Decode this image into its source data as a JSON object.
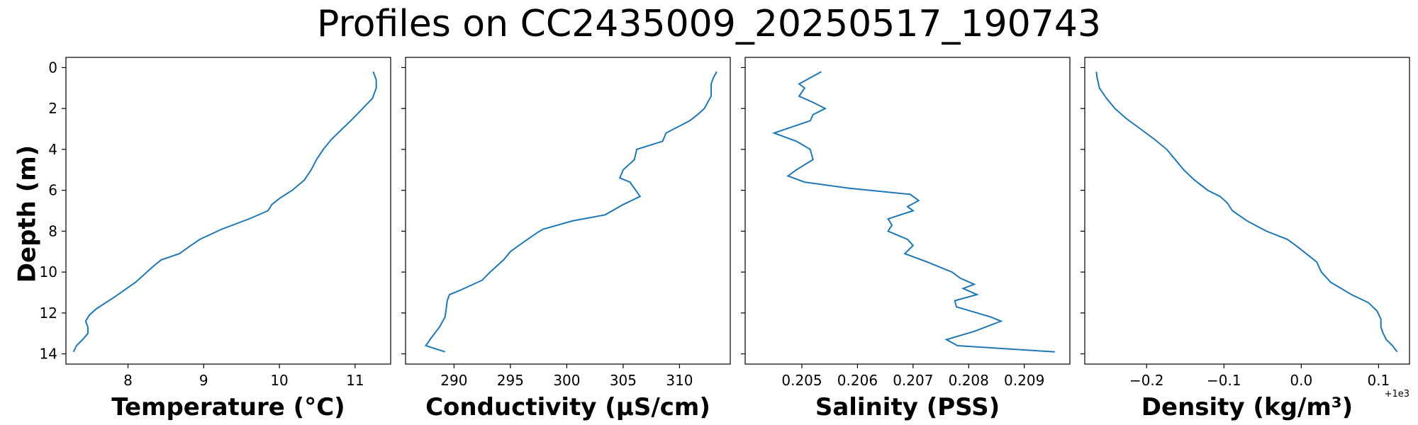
{
  "figure": {
    "title": "Profiles on CC2435009_20250517_190743",
    "ylabel": "Depth (m)",
    "line_color": "#1f77b4"
  },
  "chart_data": [
    {
      "type": "line",
      "xlabel": "Temperature (°C)",
      "ylabel": "Depth (m)",
      "xlim": [
        7.18,
        11.47
      ],
      "ylim": [
        14.5,
        -0.5
      ],
      "y_inverted": true,
      "xticks": [
        8,
        9,
        10,
        11
      ],
      "xtick_labels": [
        "8",
        "9",
        "10",
        "11"
      ],
      "yticks": [
        0,
        2,
        4,
        6,
        8,
        10,
        12,
        14
      ],
      "ytick_labels": [
        "0",
        "2",
        "4",
        "6",
        "8",
        "10",
        "12",
        "14"
      ],
      "x": [
        11.24,
        11.28,
        11.28,
        11.23,
        11.1,
        10.97,
        10.83,
        10.69,
        10.58,
        10.49,
        10.42,
        10.33,
        10.17,
        10.0,
        9.9,
        9.85,
        9.6,
        9.24,
        8.95,
        8.83,
        8.68,
        8.44,
        8.34,
        8.1,
        7.83,
        7.58,
        7.49,
        7.44,
        7.47,
        7.47,
        7.4,
        7.32,
        7.28
      ],
      "y": [
        0.2,
        0.6,
        1.0,
        1.5,
        2.0,
        2.5,
        3.0,
        3.5,
        4.0,
        4.5,
        5.0,
        5.5,
        6.0,
        6.4,
        6.7,
        7.0,
        7.4,
        7.9,
        8.4,
        8.7,
        9.1,
        9.4,
        9.7,
        10.5,
        11.2,
        11.8,
        12.1,
        12.4,
        12.7,
        13.0,
        13.3,
        13.6,
        13.9
      ]
    },
    {
      "type": "line",
      "xlabel": "Conductivity (µS/cm)",
      "ylabel": "",
      "xlim": [
        285.7,
        314.5
      ],
      "ylim": [
        14.5,
        -0.5
      ],
      "y_inverted": true,
      "xticks": [
        290,
        295,
        300,
        305,
        310
      ],
      "xtick_labels": [
        "290",
        "295",
        "300",
        "305",
        "310"
      ],
      "yticks": [
        0,
        2,
        4,
        6,
        8,
        10,
        12,
        14
      ],
      "ytick_labels": [
        "",
        "",
        "",
        "",
        "",
        "",
        "",
        ""
      ],
      "x": [
        313.3,
        313.0,
        312.8,
        312.8,
        312.2,
        311.6,
        310.9,
        308.8,
        308.5,
        306.2,
        306.0,
        305.0,
        304.7,
        305.6,
        306.5,
        305.0,
        303.4,
        300.5,
        297.9,
        297.3,
        296.0,
        295.0,
        294.4,
        293.2,
        292.5,
        290.5,
        289.6,
        289.4,
        289.3,
        289.2,
        288.7,
        288.0,
        287.5,
        289.2
      ],
      "y": [
        0.2,
        0.5,
        0.8,
        1.4,
        2.0,
        2.3,
        2.6,
        3.2,
        3.6,
        4.0,
        4.5,
        5.0,
        5.4,
        5.6,
        6.3,
        6.7,
        7.2,
        7.5,
        7.9,
        8.1,
        8.6,
        9.0,
        9.4,
        10.0,
        10.4,
        10.9,
        11.1,
        11.4,
        11.8,
        12.2,
        12.7,
        13.2,
        13.6,
        13.9
      ]
    },
    {
      "type": "line",
      "xlabel": "Salinity (PSS)",
      "ylabel": "",
      "xlim": [
        0.20398,
        0.20982
      ],
      "ylim": [
        14.5,
        -0.5
      ],
      "y_inverted": true,
      "xticks": [
        0.205,
        0.206,
        0.207,
        0.208,
        0.209
      ],
      "xtick_labels": [
        "0.205",
        "0.206",
        "0.207",
        "0.208",
        "0.209"
      ],
      "yticks": [
        0,
        2,
        4,
        6,
        8,
        10,
        12,
        14
      ],
      "ytick_labels": [
        "",
        "",
        "",
        "",
        "",
        "",
        "",
        ""
      ],
      "x": [
        0.20535,
        0.20515,
        0.20495,
        0.20505,
        0.20495,
        0.2052,
        0.20542,
        0.2052,
        0.20515,
        0.2045,
        0.2049,
        0.20515,
        0.2052,
        0.2049,
        0.20475,
        0.20505,
        0.20585,
        0.20695,
        0.2071,
        0.2069,
        0.207,
        0.20655,
        0.20662,
        0.20655,
        0.2069,
        0.207,
        0.20685,
        0.20725,
        0.2077,
        0.20785,
        0.2081,
        0.2079,
        0.20815,
        0.20775,
        0.20778,
        0.2084,
        0.20858,
        0.2081,
        0.2076,
        0.2078,
        0.20955
      ],
      "y": [
        0.2,
        0.5,
        0.8,
        1.0,
        1.4,
        1.7,
        2.0,
        2.3,
        2.6,
        3.2,
        3.6,
        4.0,
        4.5,
        5.0,
        5.3,
        5.6,
        5.9,
        6.2,
        6.5,
        6.8,
        7.0,
        7.4,
        7.7,
        8.0,
        8.4,
        8.7,
        9.1,
        9.5,
        10.0,
        10.3,
        10.6,
        10.8,
        11.1,
        11.4,
        11.7,
        12.2,
        12.4,
        12.9,
        13.3,
        13.6,
        13.9
      ]
    },
    {
      "type": "line",
      "xlabel": "Density (kg/m³)",
      "ylabel": "",
      "x_offset_label": "+1e3",
      "xlim": [
        -0.28,
        0.14
      ],
      "ylim": [
        14.5,
        -0.5
      ],
      "y_inverted": true,
      "xticks": [
        -0.2,
        -0.1,
        0.0,
        0.1
      ],
      "xtick_labels": [
        "−0.2",
        "−0.1",
        "0.0",
        "0.1"
      ],
      "yticks": [
        0,
        2,
        4,
        6,
        8,
        10,
        12,
        14
      ],
      "ytick_labels": [
        "",
        "",
        "",
        "",
        "",
        "",
        "",
        ""
      ],
      "x": [
        -0.265,
        -0.264,
        -0.261,
        -0.252,
        -0.241,
        -0.226,
        -0.208,
        -0.19,
        -0.174,
        -0.163,
        -0.152,
        -0.138,
        -0.121,
        -0.105,
        -0.096,
        -0.089,
        -0.07,
        -0.045,
        -0.018,
        -0.007,
        0.003,
        0.02,
        0.026,
        0.038,
        0.065,
        0.087,
        0.098,
        0.103,
        0.103,
        0.106,
        0.11,
        0.118,
        0.124
      ],
      "y": [
        0.2,
        0.5,
        1.0,
        1.5,
        2.0,
        2.5,
        3.0,
        3.5,
        4.0,
        4.5,
        5.0,
        5.5,
        6.0,
        6.3,
        6.6,
        7.0,
        7.5,
        8.0,
        8.4,
        8.7,
        9.0,
        9.5,
        10.0,
        10.5,
        11.1,
        11.5,
        11.9,
        12.3,
        12.7,
        13.0,
        13.3,
        13.6,
        13.9
      ]
    }
  ]
}
